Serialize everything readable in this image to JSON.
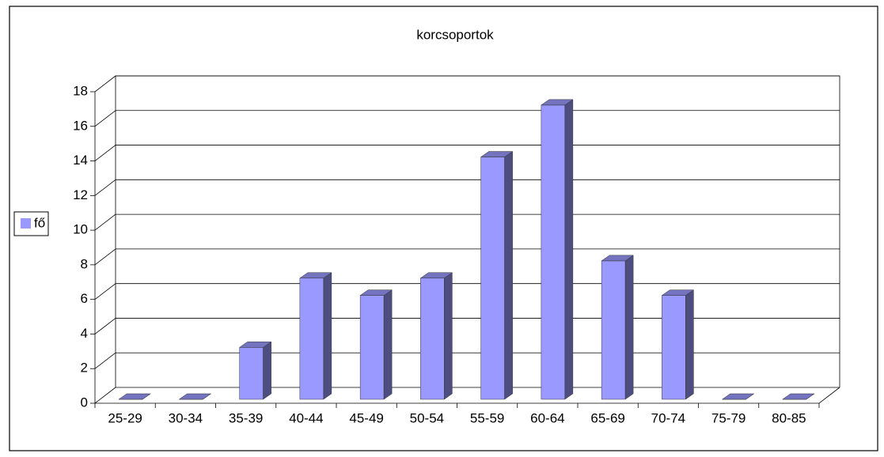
{
  "chart_data": {
    "type": "bar3d",
    "title": "korcsoportok",
    "categories": [
      "25-29",
      "30-34",
      "35-39",
      "40-44",
      "45-49",
      "50-54",
      "55-59",
      "60-64",
      "65-69",
      "70-74",
      "75-79",
      "80-85"
    ],
    "series": [
      {
        "name": "fő",
        "color": "#9999ff",
        "values": [
          0,
          0,
          3,
          7,
          6,
          7,
          14,
          17,
          8,
          6,
          0,
          0
        ]
      }
    ],
    "ylim": [
      0,
      18
    ],
    "yticks": [
      0,
      2,
      4,
      6,
      8,
      10,
      12,
      14,
      16,
      18
    ],
    "grid": true,
    "legend": "left"
  }
}
